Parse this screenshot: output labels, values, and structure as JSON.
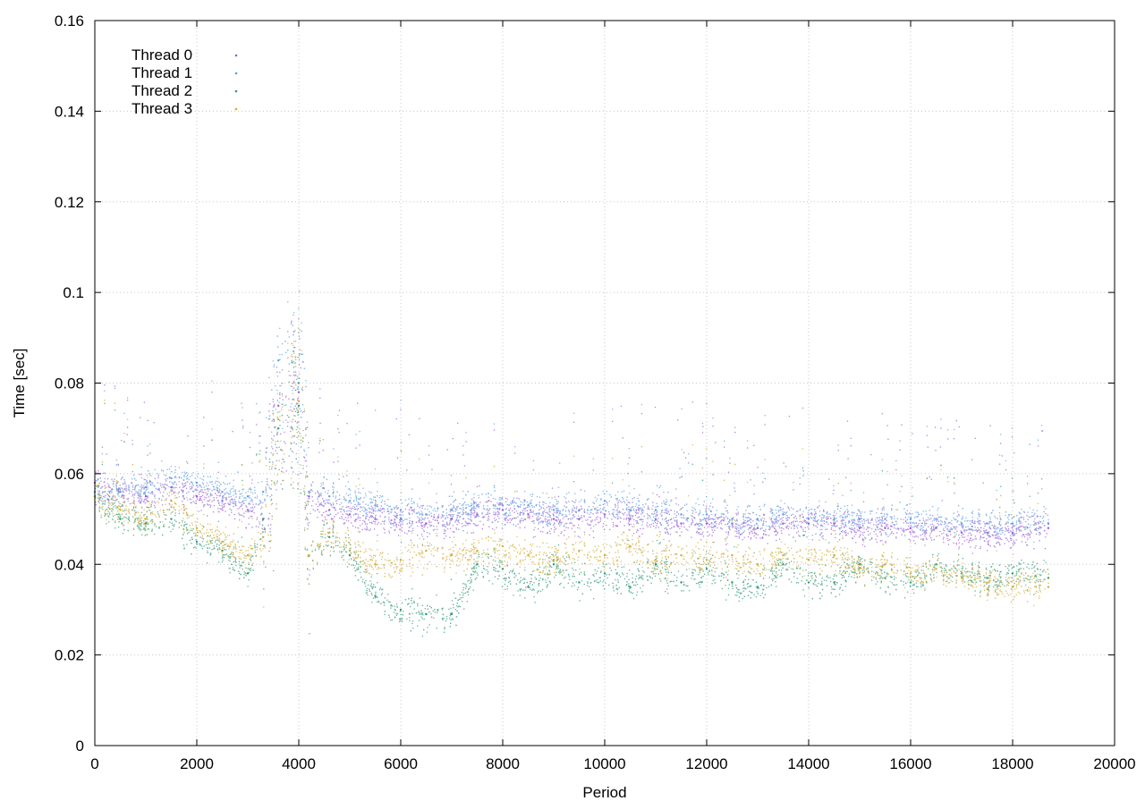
{
  "chart_data": {
    "type": "scatter",
    "title": "",
    "xlabel": "Period",
    "ylabel": "Time [sec]",
    "xlim": [
      0,
      20000
    ],
    "ylim": [
      0,
      0.16
    ],
    "x_ticks": [
      0,
      2000,
      4000,
      6000,
      8000,
      10000,
      12000,
      14000,
      16000,
      18000,
      20000
    ],
    "x_tick_labels": [
      "0",
      "2000",
      "4000",
      "6000",
      "8000",
      "10000",
      "12000",
      "14000",
      "16000",
      "18000",
      "20000"
    ],
    "y_ticks": [
      0,
      0.02,
      0.04,
      0.06,
      0.08,
      0.1,
      0.12,
      0.14,
      0.16
    ],
    "y_tick_labels": [
      "0",
      "0.02",
      "0.04",
      "0.06",
      "0.08",
      "0.1",
      "0.12",
      "0.14",
      "0.16"
    ],
    "grid": true,
    "legend_position": "top-left",
    "series": [
      {
        "name": "Thread 0",
        "color": "#9b59d6",
        "x": [
          0,
          500,
          1000,
          1500,
          2000,
          2500,
          3000,
          3300,
          3600,
          4000,
          4200,
          4600,
          5000,
          5500,
          6000,
          6500,
          7000,
          7500,
          8000,
          8500,
          9000,
          9500,
          10000,
          10500,
          11000,
          11500,
          12000,
          12500,
          13000,
          13500,
          14000,
          14500,
          15000,
          15500,
          16000,
          16500,
          17000,
          17500,
          18000,
          18700
        ],
        "y": [
          0.058,
          0.056,
          0.055,
          0.057,
          0.055,
          0.054,
          0.052,
          0.05,
          0.075,
          0.078,
          0.055,
          0.052,
          0.051,
          0.05,
          0.05,
          0.049,
          0.05,
          0.051,
          0.052,
          0.051,
          0.05,
          0.05,
          0.051,
          0.05,
          0.05,
          0.049,
          0.049,
          0.049,
          0.048,
          0.049,
          0.049,
          0.049,
          0.048,
          0.048,
          0.048,
          0.048,
          0.047,
          0.047,
          0.047,
          0.048
        ]
      },
      {
        "name": "Thread 1",
        "color": "#5aa0e6",
        "x": [
          0,
          500,
          1000,
          1500,
          2000,
          2500,
          3000,
          3300,
          3600,
          4000,
          4200,
          4600,
          5000,
          5500,
          6000,
          6500,
          7000,
          7500,
          8000,
          8500,
          9000,
          9500,
          10000,
          10500,
          11000,
          11500,
          12000,
          12500,
          13000,
          13500,
          14000,
          14500,
          15000,
          15500,
          16000,
          16500,
          17000,
          17500,
          18000,
          18700
        ],
        "y": [
          0.056,
          0.056,
          0.057,
          0.059,
          0.058,
          0.056,
          0.055,
          0.056,
          0.085,
          0.08,
          0.056,
          0.055,
          0.054,
          0.053,
          0.052,
          0.051,
          0.052,
          0.053,
          0.053,
          0.053,
          0.052,
          0.052,
          0.054,
          0.052,
          0.052,
          0.051,
          0.051,
          0.05,
          0.05,
          0.051,
          0.05,
          0.05,
          0.05,
          0.05,
          0.05,
          0.05,
          0.049,
          0.049,
          0.049,
          0.049
        ]
      },
      {
        "name": "Thread 2",
        "color": "#2e9a74",
        "x": [
          0,
          500,
          1000,
          1500,
          2000,
          2500,
          3000,
          3300,
          3600,
          4000,
          4200,
          4600,
          5000,
          5500,
          6000,
          6500,
          7000,
          7500,
          8000,
          8500,
          9000,
          9500,
          10000,
          10500,
          11000,
          11500,
          12000,
          12500,
          13000,
          13500,
          14000,
          14500,
          15000,
          15500,
          16000,
          16500,
          17000,
          17500,
          18000,
          18700
        ],
        "y": [
          0.055,
          0.05,
          0.049,
          0.05,
          0.045,
          0.043,
          0.038,
          0.05,
          0.07,
          0.075,
          0.042,
          0.046,
          0.042,
          0.033,
          0.03,
          0.029,
          0.029,
          0.04,
          0.039,
          0.035,
          0.04,
          0.036,
          0.038,
          0.035,
          0.04,
          0.036,
          0.039,
          0.036,
          0.035,
          0.04,
          0.036,
          0.036,
          0.04,
          0.037,
          0.036,
          0.04,
          0.038,
          0.037,
          0.038,
          0.037
        ]
      },
      {
        "name": "Thread 3",
        "color": "#d4ac33",
        "x": [
          0,
          500,
          1000,
          1500,
          2000,
          2500,
          3000,
          3300,
          3600,
          4000,
          4200,
          4600,
          5000,
          5500,
          6000,
          6500,
          7000,
          7500,
          8000,
          8500,
          9000,
          9500,
          10000,
          10500,
          11000,
          11500,
          12000,
          12500,
          13000,
          13500,
          14000,
          14500,
          15000,
          15500,
          16000,
          16500,
          17000,
          17500,
          18000,
          18700
        ],
        "y": [
          0.055,
          0.052,
          0.05,
          0.054,
          0.048,
          0.045,
          0.042,
          0.046,
          0.072,
          0.076,
          0.042,
          0.047,
          0.043,
          0.04,
          0.041,
          0.043,
          0.042,
          0.043,
          0.044,
          0.042,
          0.041,
          0.043,
          0.042,
          0.044,
          0.041,
          0.042,
          0.041,
          0.042,
          0.04,
          0.042,
          0.041,
          0.042,
          0.039,
          0.04,
          0.038,
          0.039,
          0.037,
          0.036,
          0.035,
          0.035
        ]
      }
    ]
  }
}
